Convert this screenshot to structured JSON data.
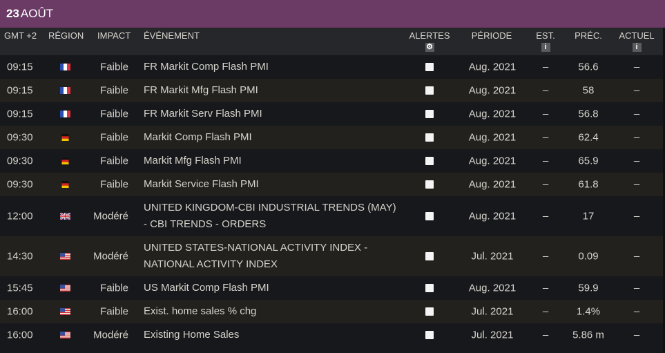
{
  "date": {
    "day": "23",
    "month": "AOÛT"
  },
  "headers": {
    "time": "GMT +2",
    "region": "RÉGION",
    "impact": "IMPACT",
    "event": "ÉVÉNEMENT",
    "alerts": "ALERTES",
    "period": "PÉRIODE",
    "est": "EST.",
    "prev": "PRÉC.",
    "actual": "ACTUEL"
  },
  "header_icons": {
    "alerts": "gear-icon",
    "est": "info-icon",
    "actual": "info-icon"
  },
  "rows": [
    {
      "time": "09:15",
      "region": "FR",
      "impact": "Faible",
      "event": [
        "FR Markit Comp Flash PMI"
      ],
      "alert": false,
      "period": "Aug. 2021",
      "est": "–",
      "prev": "56.6",
      "actual": "–"
    },
    {
      "time": "09:15",
      "region": "FR",
      "impact": "Faible",
      "event": [
        "FR Markit Mfg Flash PMI"
      ],
      "alert": false,
      "period": "Aug. 2021",
      "est": "–",
      "prev": "58",
      "actual": "–"
    },
    {
      "time": "09:15",
      "region": "FR",
      "impact": "Faible",
      "event": [
        "FR Markit Serv Flash PMI"
      ],
      "alert": false,
      "period": "Aug. 2021",
      "est": "–",
      "prev": "56.8",
      "actual": "–"
    },
    {
      "time": "09:30",
      "region": "DE",
      "impact": "Faible",
      "event": [
        "Markit Comp Flash PMI"
      ],
      "alert": false,
      "period": "Aug. 2021",
      "est": "–",
      "prev": "62.4",
      "actual": "–"
    },
    {
      "time": "09:30",
      "region": "DE",
      "impact": "Faible",
      "event": [
        "Markit Mfg Flash PMI"
      ],
      "alert": false,
      "period": "Aug. 2021",
      "est": "–",
      "prev": "65.9",
      "actual": "–"
    },
    {
      "time": "09:30",
      "region": "DE",
      "impact": "Faible",
      "event": [
        "Markit Service Flash PMI"
      ],
      "alert": false,
      "period": "Aug. 2021",
      "est": "–",
      "prev": "61.8",
      "actual": "–"
    },
    {
      "time": "12:00",
      "region": "GB",
      "impact": "Modéré",
      "event": [
        "UNITED KINGDOM-CBI INDUSTRIAL TRENDS (MAY)",
        "- CBI TRENDS - ORDERS"
      ],
      "alert": false,
      "period": "Aug. 2021",
      "est": "–",
      "prev": "17",
      "actual": "–"
    },
    {
      "time": "14:30",
      "region": "US",
      "impact": "Modéré",
      "event": [
        "UNITED STATES-NATIONAL ACTIVITY INDEX -",
        "NATIONAL ACTIVITY INDEX"
      ],
      "alert": false,
      "period": "Jul. 2021",
      "est": "–",
      "prev": "0.09",
      "actual": "–"
    },
    {
      "time": "15:45",
      "region": "US",
      "impact": "Faible",
      "event": [
        "US Markit Comp Flash PMI"
      ],
      "alert": false,
      "period": "Aug. 2021",
      "est": "–",
      "prev": "59.9",
      "actual": "–"
    },
    {
      "time": "16:00",
      "region": "US",
      "impact": "Faible",
      "event": [
        "Exist. home sales % chg"
      ],
      "alert": false,
      "period": "Jul. 2021",
      "est": "–",
      "prev": "1.4%",
      "actual": "–"
    },
    {
      "time": "16:00",
      "region": "US",
      "impact": "Modéré",
      "event": [
        "Existing Home Sales"
      ],
      "alert": false,
      "period": "Jul. 2021",
      "est": "–",
      "prev": "5.86 m",
      "actual": "–"
    }
  ]
}
